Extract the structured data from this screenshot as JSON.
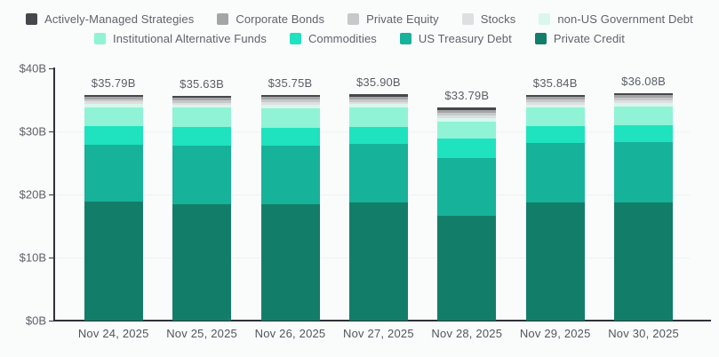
{
  "chart_data": {
    "type": "bar",
    "stacked": true,
    "title": "",
    "xlabel": "",
    "ylabel": "",
    "ylim": [
      0,
      40
    ],
    "grid": "faint-horizontal",
    "legend_position": "top",
    "categories": [
      "Nov 24, 2025",
      "Nov 25, 2025",
      "Nov 26, 2025",
      "Nov 27, 2025",
      "Nov 28, 2025",
      "Nov 29, 2025",
      "Nov 30, 2025"
    ],
    "series": [
      {
        "name": "Private Credit",
        "color": "#127e69",
        "values": [
          18.81,
          18.51,
          18.51,
          18.75,
          16.59,
          18.79,
          18.79
        ]
      },
      {
        "name": "US Treasury Debt",
        "color": "#16b29a",
        "values": [
          9.1,
          9.21,
          9.28,
          9.31,
          9.19,
          9.41,
          9.51
        ]
      },
      {
        "name": "Commodities",
        "color": "#1fe2bf",
        "values": [
          2.97,
          2.92,
          2.74,
          2.68,
          3.07,
          2.58,
          2.74
        ]
      },
      {
        "name": "Institutional Alternative Funds",
        "color": "#90f3d6",
        "values": [
          2.86,
          3.17,
          3.18,
          3.06,
          2.73,
          2.96,
          2.87
        ]
      },
      {
        "name": "non-US Government Debt",
        "color": "#d9f7ec",
        "values": [
          0.64,
          0.42,
          0.57,
          0.56,
          0.47,
          0.56,
          0.56
        ]
      },
      {
        "name": "Stocks",
        "color": "#dedfe0",
        "values": [
          0.36,
          0.28,
          0.35,
          0.35,
          0.52,
          0.42,
          0.42
        ]
      },
      {
        "name": "Private Equity",
        "color": "#c6c8c9",
        "values": [
          0.35,
          0.42,
          0.42,
          0.35,
          0.42,
          0.42,
          0.42
        ]
      },
      {
        "name": "Corporate Bonds",
        "color": "#a3a5a7",
        "values": [
          0.42,
          0.42,
          0.42,
          0.42,
          0.42,
          0.42,
          0.42
        ]
      },
      {
        "name": "Actively-Managed Strategies",
        "color": "#45474a",
        "values": [
          0.28,
          0.28,
          0.28,
          0.42,
          0.38,
          0.28,
          0.35
        ]
      }
    ],
    "totals": [
      "$35.79B",
      "$35.63B",
      "$35.75B",
      "$35.90B",
      "$33.79B",
      "$35.84B",
      "$36.08B"
    ],
    "y_ticks": [
      {
        "value": 0,
        "label": "$0B"
      },
      {
        "value": 10,
        "label": "$10B"
      },
      {
        "value": 20,
        "label": "$20B"
      },
      {
        "value": 30,
        "label": "$30B"
      },
      {
        "value": 40,
        "label": "$40B"
      }
    ],
    "legend_rows": [
      [
        "Actively-Managed Strategies",
        "Corporate Bonds",
        "Private Equity",
        "Stocks",
        "non-US Government Debt"
      ],
      [
        "Institutional Alternative Funds",
        "Commodities",
        "US Treasury Debt",
        "Private Credit"
      ]
    ]
  },
  "colors": {
    "background": "#fafbfb",
    "axis": "#2e3138",
    "grid": "#f0f2f2",
    "tick_text": "#5d6269",
    "total_text": "#5a5f66",
    "x_label_text": "#51575f",
    "legend_text": "#5f646b"
  }
}
